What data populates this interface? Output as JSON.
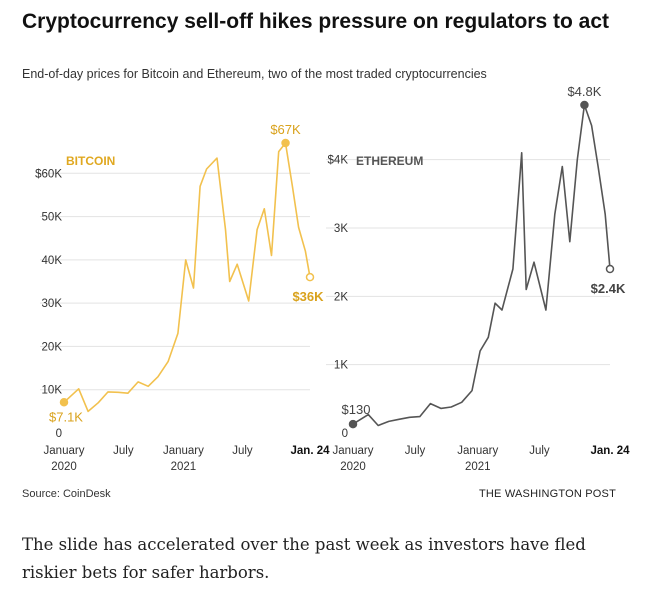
{
  "article": {
    "headline": "Cryptocurrency sell-off hikes pressure on regulators to act",
    "subtitle": "End-of-day prices for Bitcoin and Ethereum, two of the most traded cryptocurrencies",
    "source": "Source: CoinDesk",
    "credit": "THE WASHINGTON POST",
    "body": "The slide has accelerated over the past week as investors have fled riskier bets for safer harbors."
  },
  "chart_data": [
    {
      "type": "line",
      "label": "BITCOIN",
      "color": "#f2c14e",
      "label_color": "#e0a820",
      "ylim": [
        0,
        70000
      ],
      "yticks": [
        0,
        10000,
        20000,
        30000,
        40000,
        50000,
        60000
      ],
      "ytick_labels": [
        "0",
        "10K",
        "20K",
        "30K",
        "40K",
        "50K",
        "$60K"
      ],
      "xticks": [
        "2020-01-01",
        "2020-07-01",
        "2021-01-01",
        "2021-07-01",
        "2022-01-24"
      ],
      "xtick_labels": [
        "January\n2020",
        "July",
        "January\n2021",
        "July",
        "Jan. 24"
      ],
      "x": [
        "2020-01-01",
        "2020-02-15",
        "2020-03-15",
        "2020-04-15",
        "2020-05-15",
        "2020-06-15",
        "2020-07-15",
        "2020-08-15",
        "2020-09-15",
        "2020-10-15",
        "2020-11-15",
        "2020-12-15",
        "2021-01-08",
        "2021-02-01",
        "2021-02-21",
        "2021-03-13",
        "2021-04-14",
        "2021-05-10",
        "2021-05-23",
        "2021-06-15",
        "2021-07-20",
        "2021-08-15",
        "2021-09-06",
        "2021-09-28",
        "2021-10-20",
        "2021-11-10",
        "2021-12-01",
        "2021-12-20",
        "2022-01-10",
        "2022-01-24"
      ],
      "y": [
        7100,
        10200,
        5000,
        7000,
        9500,
        9400,
        9200,
        11800,
        10800,
        13000,
        16500,
        23000,
        40000,
        33500,
        57000,
        61000,
        63500,
        47000,
        35000,
        39000,
        30500,
        47000,
        51800,
        41000,
        65000,
        67000,
        57000,
        47500,
        42000,
        36000
      ],
      "annotations": [
        {
          "label": "$7.1K",
          "x": "2020-01-01",
          "y": 7100
        },
        {
          "label": "$67K",
          "x": "2021-11-10",
          "y": 67000
        },
        {
          "label": "$36K",
          "x": "2022-01-24",
          "y": 36000
        }
      ]
    },
    {
      "type": "line",
      "label": "ETHEREUM",
      "color": "#555555",
      "label_color": "#555555",
      "ylim": [
        0,
        4800
      ],
      "yticks": [
        0,
        1000,
        2000,
        3000,
        4000
      ],
      "ytick_labels": [
        "0",
        "1K",
        "2K",
        "3K",
        "$4K"
      ],
      "xticks": [
        "2020-01-01",
        "2020-07-01",
        "2021-01-01",
        "2021-07-01",
        "2022-01-24"
      ],
      "xtick_labels": [
        "January\n2020",
        "July",
        "January\n2021",
        "July",
        "Jan. 24"
      ],
      "x": [
        "2020-01-01",
        "2020-02-15",
        "2020-03-15",
        "2020-04-15",
        "2020-05-15",
        "2020-06-15",
        "2020-07-15",
        "2020-08-15",
        "2020-09-15",
        "2020-10-15",
        "2020-11-15",
        "2020-12-15",
        "2021-01-08",
        "2021-02-01",
        "2021-02-21",
        "2021-03-13",
        "2021-04-14",
        "2021-05-10",
        "2021-05-23",
        "2021-06-15",
        "2021-07-20",
        "2021-08-15",
        "2021-09-06",
        "2021-09-28",
        "2021-10-20",
        "2021-11-10",
        "2021-12-01",
        "2021-12-20",
        "2022-01-10",
        "2022-01-24"
      ],
      "y": [
        130,
        270,
        110,
        170,
        200,
        230,
        240,
        430,
        360,
        380,
        450,
        620,
        1200,
        1400,
        1900,
        1800,
        2400,
        4100,
        2100,
        2500,
        1800,
        3200,
        3900,
        2800,
        4000,
        4800,
        4500,
        3900,
        3200,
        2400
      ],
      "annotations": [
        {
          "label": "$130",
          "x": "2020-01-01",
          "y": 130
        },
        {
          "label": "$4.8K",
          "x": "2021-11-10",
          "y": 4800
        },
        {
          "label": "$2.4K",
          "x": "2022-01-24",
          "y": 2400
        }
      ]
    }
  ]
}
